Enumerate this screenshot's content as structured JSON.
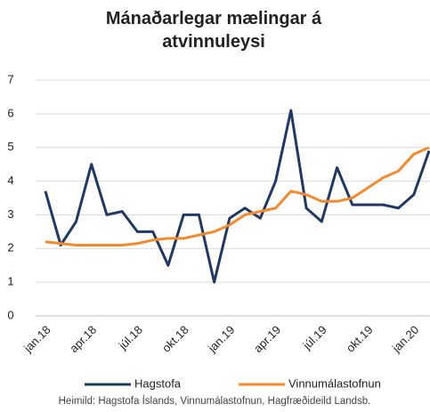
{
  "chart_data": {
    "type": "line",
    "title": "Mánaðarlegar mælingar á atvinnuleysi",
    "categories": [
      "jan.18",
      null,
      null,
      "apr.18",
      null,
      null,
      "júl.18",
      null,
      null,
      "okt.18",
      null,
      null,
      "jan.19",
      null,
      null,
      "apr.19",
      null,
      null,
      "júl.19",
      null,
      null,
      "okt.19",
      null,
      null,
      "jan.20",
      null
    ],
    "series": [
      {
        "name": "Hagstofa",
        "color": "#203864",
        "values": [
          3.7,
          2.1,
          2.8,
          4.5,
          3.0,
          3.1,
          2.5,
          2.5,
          1.5,
          3.0,
          3.0,
          1.0,
          2.9,
          3.2,
          2.9,
          4.0,
          6.1,
          3.2,
          2.8,
          4.4,
          3.3,
          3.3,
          3.3,
          3.2,
          3.6,
          4.9
        ]
      },
      {
        "name": "Vinnumálastofnun",
        "color": "#f28a2e",
        "values": [
          2.2,
          2.15,
          2.1,
          2.1,
          2.1,
          2.1,
          2.15,
          2.25,
          2.3,
          2.3,
          2.4,
          2.5,
          2.7,
          3.0,
          3.1,
          3.2,
          3.7,
          3.6,
          3.4,
          3.4,
          3.5,
          3.8,
          4.1,
          4.3,
          4.8,
          5.0
        ]
      }
    ],
    "ylim": [
      0,
      7
    ],
    "yticks": [
      0,
      1,
      2,
      3,
      4,
      5,
      6,
      7
    ],
    "grid": true,
    "legend": "bottom",
    "source": "Heimild: Hagstofa Íslands, Vinnumálastofnun, Hagfræðideild Landsb."
  }
}
